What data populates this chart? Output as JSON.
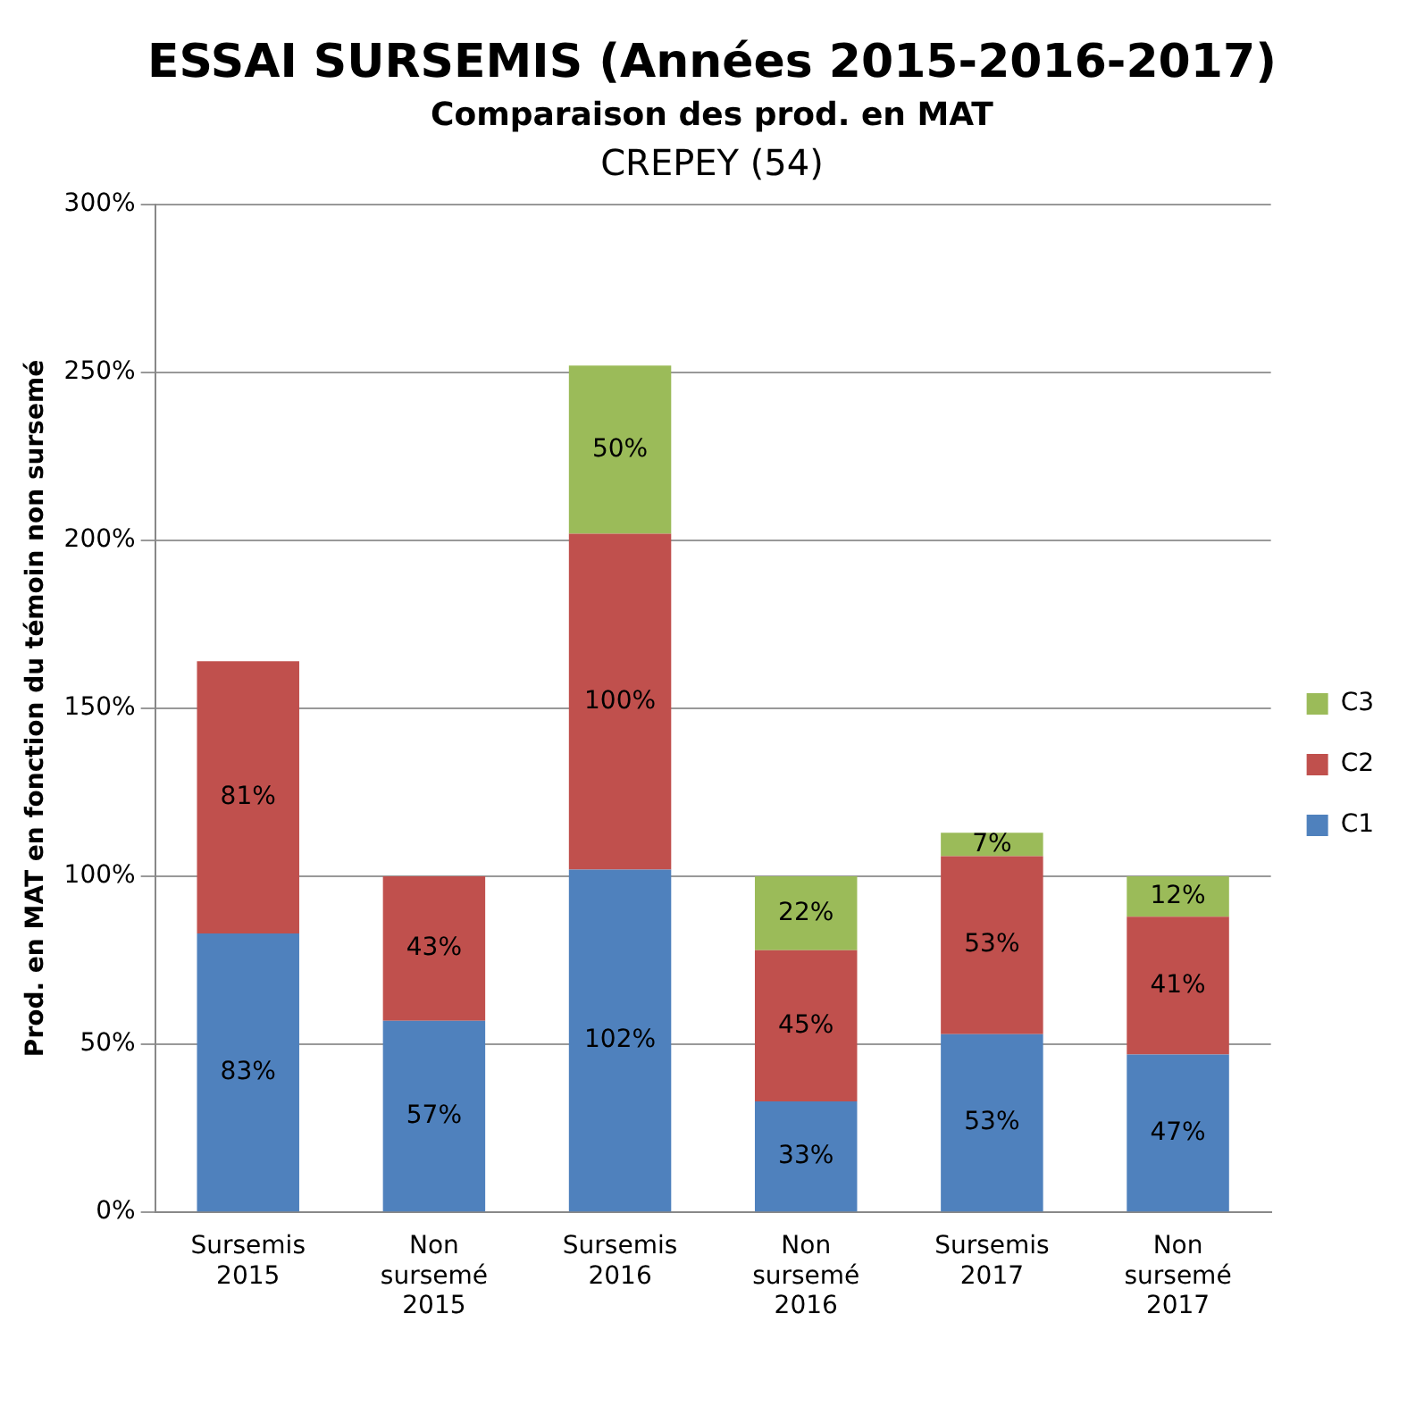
{
  "chart_data": {
    "type": "bar",
    "title": "ESSAI SURSEMIS (Années 2015-2016-2017)",
    "subtitle": "Comparaison  des prod. en MAT",
    "annotations": [
      "CREPEY (54)"
    ],
    "ylabel": "Prod. en MAT en fonction du témoin non sursemé",
    "categories": [
      "Sursemis 2015",
      "Non sursemé 2015",
      "Sursemis 2016",
      "Non sursemé 2016",
      "Sursemis 2017",
      "Non sursemé 2017"
    ],
    "stacked": true,
    "ylim": [
      0,
      300
    ],
    "yticks": [
      {
        "value": 0,
        "label": "0%"
      },
      {
        "value": 50,
        "label": "50%"
      },
      {
        "value": 100,
        "label": "100%"
      },
      {
        "value": 150,
        "label": "150%"
      },
      {
        "value": 200,
        "label": "200%"
      },
      {
        "value": 250,
        "label": "250%"
      },
      {
        "value": 300,
        "label": "300%"
      }
    ],
    "grid": "y",
    "legend": "right",
    "series": [
      {
        "name": "C1",
        "color": "#4f81bd",
        "values": [
          83,
          57,
          102,
          33,
          53,
          47
        ],
        "value_labels": [
          "83%",
          "57%",
          "102%",
          "33%",
          "53%",
          "47%"
        ]
      },
      {
        "name": "C2",
        "color": "#c0504d",
        "values": [
          81,
          43,
          100,
          45,
          53,
          41
        ],
        "value_labels": [
          "81%",
          "43%",
          "100%",
          "45%",
          "53%",
          "41%"
        ]
      },
      {
        "name": "C3",
        "color": "#9bbb59",
        "values": [
          null,
          null,
          50,
          22,
          7,
          12
        ],
        "value_labels": [
          null,
          null,
          "50%",
          "22%",
          "7%",
          "12%"
        ]
      }
    ]
  }
}
